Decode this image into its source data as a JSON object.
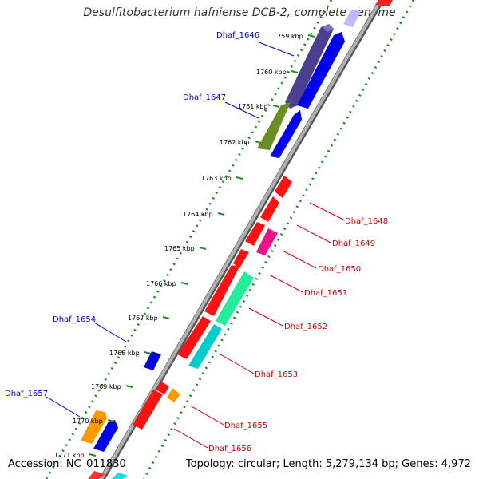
{
  "title": "Desulfitobacterium hafniense DCB-2, complete genome",
  "footer": {
    "accession": "Accession: NC_011830",
    "summary": "Topology: circular; Length: 5,279,134 bp; Genes: 4,972"
  },
  "colors": {
    "forward_label": "#0000cc",
    "reverse_label": "#cc0000",
    "backbone": "#888888",
    "dotted_ring": "#228b22"
  },
  "ticks": [
    {
      "label": "1759 kbp"
    },
    {
      "label": "1760 kbp"
    },
    {
      "label": "1761 kbp"
    },
    {
      "label": "1762 kbp"
    },
    {
      "label": "1763 kbp"
    },
    {
      "label": "1764 kbp"
    },
    {
      "label": "1765 kbp"
    },
    {
      "label": "1766 kbp"
    },
    {
      "label": "1767 kbp"
    },
    {
      "label": "1768 kbp"
    },
    {
      "label": "1769 kbp"
    },
    {
      "label": "1770 kbp"
    },
    {
      "label": "1771 kbp"
    }
  ],
  "gene_labels": [
    {
      "text": "Dhaf_1646",
      "strand": "forward"
    },
    {
      "text": "Dhaf_1647",
      "strand": "forward"
    },
    {
      "text": "Dhaf_1648",
      "strand": "reverse"
    },
    {
      "text": "Dhaf_1649",
      "strand": "reverse"
    },
    {
      "text": "Dhaf_1650",
      "strand": "reverse"
    },
    {
      "text": "Dhaf_1651",
      "strand": "reverse"
    },
    {
      "text": "Dhaf_1652",
      "strand": "reverse"
    },
    {
      "text": "Dhaf_1653",
      "strand": "reverse"
    },
    {
      "text": "Dhaf_1654",
      "strand": "forward"
    },
    {
      "text": "Dhaf_1655",
      "strand": "reverse"
    },
    {
      "text": "Dhaf_1656",
      "strand": "reverse"
    },
    {
      "text": "Dhaf_1657",
      "strand": "forward"
    }
  ]
}
